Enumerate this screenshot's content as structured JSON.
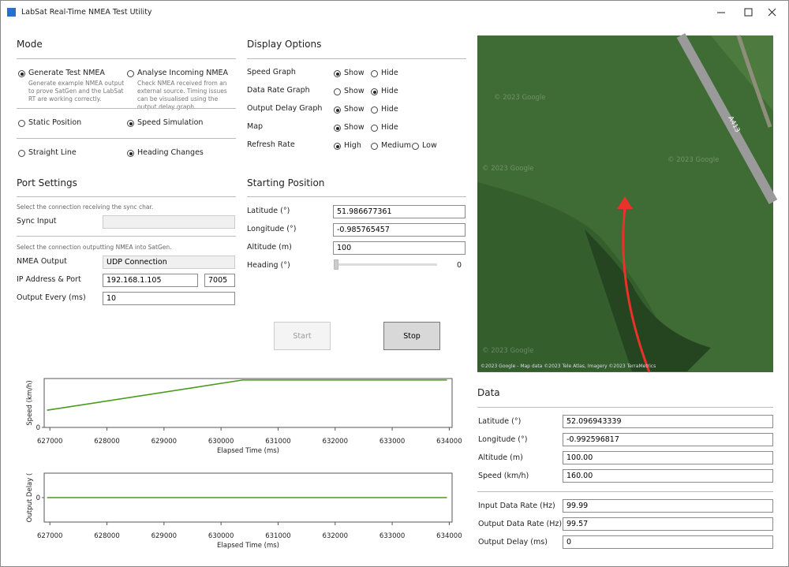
{
  "window": {
    "title": "LabSat Real-Time NMEA Test Utility"
  },
  "mode": {
    "heading": "Mode",
    "groups": [
      [
        {
          "label": "Generate Test NMEA",
          "description": "Generate example NMEA output to prove SatGen and the LabSat RT are working correctly.",
          "selected": true
        },
        {
          "label": "Analyse Incoming NMEA",
          "description": "Check NMEA received from an external source. Timing issues can be visualised using the output delay graph.",
          "selected": false
        }
      ],
      [
        {
          "label": "Static Position",
          "selected": false
        },
        {
          "label": "Speed Simulation",
          "selected": true
        }
      ],
      [
        {
          "label": "Straight Line",
          "selected": false
        },
        {
          "label": "Heading Changes",
          "selected": true
        }
      ]
    ]
  },
  "port_settings": {
    "heading": "Port Settings",
    "sync_hint": "Select the connection receiving the sync char.",
    "sync_label": "Sync Input",
    "output_hint": "Select the connection outputting NMEA into SatGen.",
    "nmea_output": {
      "label": "NMEA Output",
      "value": "UDP Connection"
    },
    "ip": {
      "label": "IP Address & Port",
      "value": "192.168.1.105",
      "port": "7005"
    },
    "output_every": {
      "label": "Output Every (ms)",
      "value": "10"
    }
  },
  "display_options": {
    "heading": "Display Options",
    "rows": [
      {
        "label": "Speed Graph",
        "options": [
          "Show",
          "Hide"
        ],
        "selected": 0
      },
      {
        "label": "Data Rate Graph",
        "options": [
          "Show",
          "Hide"
        ],
        "selected": 1
      },
      {
        "label": "Output Delay Graph",
        "options": [
          "Show",
          "Hide"
        ],
        "selected": 0
      },
      {
        "label": "Map",
        "options": [
          "Show",
          "Hide"
        ],
        "selected": 0
      },
      {
        "label": "Refresh Rate",
        "options": [
          "High",
          "Medium",
          "Low"
        ],
        "selected": 0
      }
    ]
  },
  "starting_position": {
    "heading": "Starting Position",
    "fields": [
      {
        "label": "Latitude (°)",
        "value": "51.986677361"
      },
      {
        "label": "Longitude (°)",
        "value": "-0.985765457"
      },
      {
        "label": "Altitude (m)",
        "value": "100"
      }
    ],
    "heading_slider": {
      "label": "Heading (°)",
      "value": 0
    }
  },
  "buttons": [
    {
      "label": "Start",
      "enabled": false
    },
    {
      "label": "Stop",
      "enabled": true
    }
  ],
  "map": {
    "road_label": "A413",
    "watermark": "© 2023 Google",
    "attribution": "©2023 Google - Map data ©2023 Tele Atlas, Imagery ©2023 TerraMetrics"
  },
  "data_panel": {
    "heading": "Data",
    "fields": [
      {
        "label": "Latitude (°)",
        "value": "52.096943339"
      },
      {
        "label": "Longitude (°)",
        "value": "-0.992596817"
      },
      {
        "label": "Altitude (m)",
        "value": "100.00"
      },
      {
        "label": "Speed (km/h)",
        "value": "160.00"
      }
    ],
    "rates": [
      {
        "label": "Input Data Rate (Hz)",
        "value": "99.99"
      },
      {
        "label": "Output Data Rate (Hz)",
        "value": "99.57"
      },
      {
        "label": "Output Delay (ms)",
        "value": "0"
      }
    ]
  },
  "chart_data": [
    {
      "type": "line",
      "xlabel": "Elapsed Time (ms)",
      "ylabel": "Speed (km/h)",
      "x": [
        626950,
        630380,
        633960
      ],
      "values": [
        58,
        160,
        160
      ],
      "color": "#4a9a1e",
      "xlim": [
        626900,
        634050
      ],
      "xticks": [
        627000,
        628000,
        629000,
        630000,
        631000,
        632000,
        633000,
        634000
      ],
      "ylim": [
        0,
        165
      ],
      "yticks": [
        0
      ]
    },
    {
      "type": "line",
      "xlabel": "Elapsed Time (ms)",
      "ylabel": "Output Delay (",
      "x": [
        626950,
        633960
      ],
      "values": [
        0,
        0
      ],
      "color": "#4a9a1e",
      "xlim": [
        626900,
        634050
      ],
      "xticks": [
        627000,
        628000,
        629000,
        630000,
        631000,
        632000,
        633000,
        634000
      ],
      "ylim": [
        -10,
        10
      ],
      "yticks": [
        0
      ]
    }
  ]
}
